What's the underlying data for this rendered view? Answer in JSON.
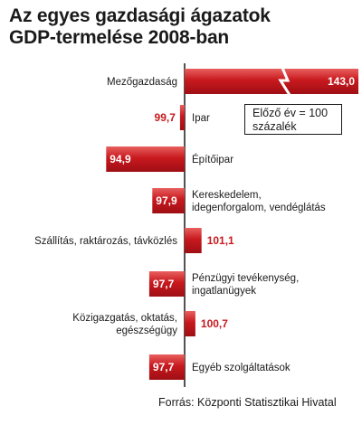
{
  "title_line1": "Az egyes gazdasági ágazatok",
  "title_line2": "GDP-termelése 2008-ban",
  "source": "Forrás: Központi Statisztikai Hivatal",
  "legend_line1": "Előző év = 100",
  "legend_line2": "százalék",
  "colors": {
    "bar": "#c8191e",
    "bar_light": "#e8605f",
    "axis": "#1a1a1a",
    "label_out": "#c8191e",
    "label_in": "#ffffff"
  },
  "chart_data": {
    "type": "bar",
    "orientation": "horizontal",
    "baseline": 100,
    "axis_break_on": "Mezőgazdaság",
    "categories": [
      [
        "Mezőgazdaság"
      ],
      [
        "Ipar"
      ],
      [
        "Építőipar"
      ],
      [
        "Kereskedelem,",
        "idegenforgalom, vendéglátás"
      ],
      [
        "Szállítás, raktározás, távközlés"
      ],
      [
        "Pénzügyi tevékenység,",
        "ingatlanügyek"
      ],
      [
        "Közigazgatás, oktatás,",
        "egészségügy"
      ],
      [
        "Egyéb szolgáltatások"
      ]
    ],
    "values": [
      143.0,
      99.7,
      94.9,
      97.9,
      101.1,
      97.7,
      100.7,
      97.7
    ],
    "value_labels": [
      "143,0",
      "99,7",
      "94,9",
      "97,9",
      "101,1",
      "97,7",
      "100,7",
      "97,7"
    ]
  }
}
